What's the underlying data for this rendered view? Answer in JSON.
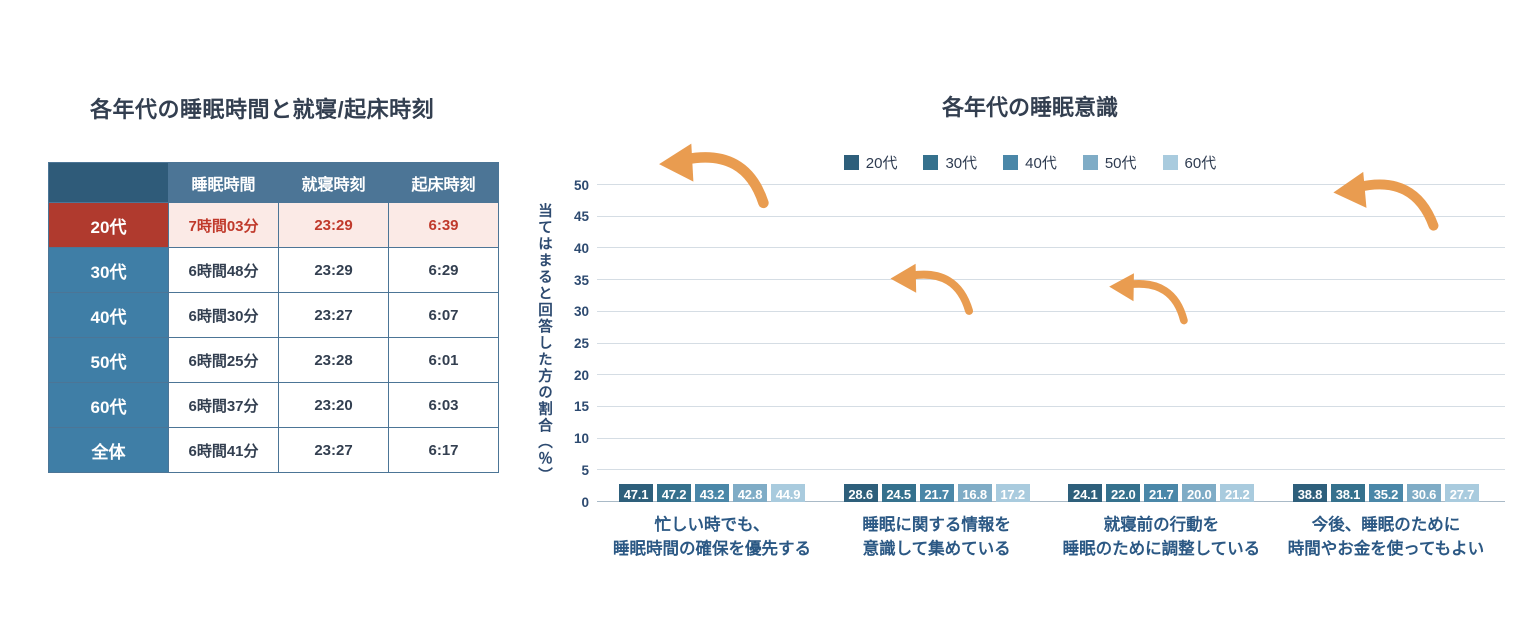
{
  "table": {
    "title": "各年代の睡眠時間と就寝/起床時刻",
    "headers": {
      "sleep": "睡眠時間",
      "bedtime": "就寝時刻",
      "wake": "起床時刻"
    },
    "rows": [
      {
        "label": "20代",
        "sleep": "7時間03分",
        "bedtime": "23:29",
        "wake": "6:39"
      },
      {
        "label": "30代",
        "sleep": "6時間48分",
        "bedtime": "23:29",
        "wake": "6:29"
      },
      {
        "label": "40代",
        "sleep": "6時間30分",
        "bedtime": "23:27",
        "wake": "6:07"
      },
      {
        "label": "50代",
        "sleep": "6時間25分",
        "bedtime": "23:28",
        "wake": "6:01"
      },
      {
        "label": "60代",
        "sleep": "6時間37分",
        "bedtime": "23:20",
        "wake": "6:03"
      },
      {
        "label": "全体",
        "sleep": "6時間41分",
        "bedtime": "23:27",
        "wake": "6:17"
      }
    ],
    "highlight_row": "20代",
    "colors": {
      "header_bg": "#4C7596",
      "corner_bg": "#2F5B79",
      "label_bg": "#3F7EA6",
      "highlight_label_bg": "#B03A2E",
      "highlight_row_bg": "#FBEAE6",
      "highlight_text": "#C0392B",
      "border": "#4C7596"
    }
  },
  "chart_data": {
    "type": "bar",
    "title": "各年代の睡眠意識",
    "ylabel": "当てはまると回答した方の割合（％）",
    "ylim": [
      0,
      50
    ],
    "ytick_step": 5,
    "grid": true,
    "legend_position": "top-center",
    "categories": [
      [
        "忙しい時でも、",
        "睡眠時間の確保を優先する"
      ],
      [
        "睡眠に関する情報を",
        "意識して集めている"
      ],
      [
        "就寝前の行動を",
        "睡眠のために調整している"
      ],
      [
        "今後、睡眠のために",
        "時間やお金を使ってもよい"
      ]
    ],
    "series": [
      {
        "name": "20代",
        "color": "#2E5F7B",
        "values": [
          47.1,
          28.6,
          24.1,
          38.8
        ]
      },
      {
        "name": "30代",
        "color": "#35718D",
        "values": [
          47.2,
          24.5,
          22.0,
          38.1
        ]
      },
      {
        "name": "40代",
        "color": "#4A87A8",
        "values": [
          43.2,
          21.7,
          21.7,
          35.2
        ]
      },
      {
        "name": "50代",
        "color": "#7FACC6",
        "values": [
          42.8,
          16.8,
          20.0,
          30.6
        ]
      },
      {
        "name": "60代",
        "color": "#A9CBDE",
        "values": [
          44.9,
          17.2,
          21.2,
          27.7
        ]
      }
    ],
    "annotations": [
      {
        "type": "arrow",
        "color": "#E99C50",
        "target_group": 0
      },
      {
        "type": "arrow",
        "color": "#E99C50",
        "target_group": 1
      },
      {
        "type": "arrow",
        "color": "#E99C50",
        "target_group": 2
      },
      {
        "type": "arrow",
        "color": "#E99C50",
        "target_group": 3
      }
    ]
  }
}
